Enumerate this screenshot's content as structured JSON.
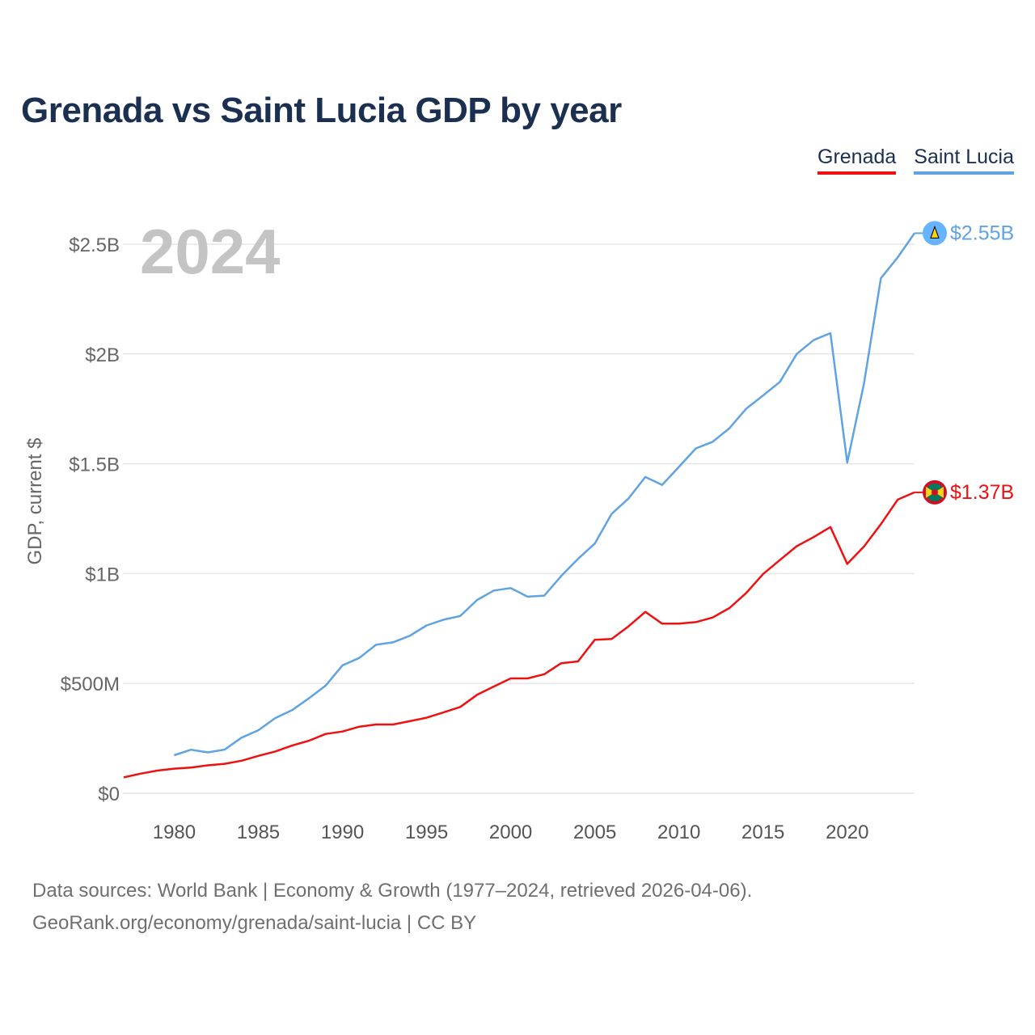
{
  "title": "Grenada vs Saint Lucia GDP by year",
  "legend": [
    {
      "name": "Grenada",
      "color": "#ee1111"
    },
    {
      "name": "Saint Lucia",
      "color": "#5fa3e3"
    }
  ],
  "footer": {
    "line1": "Data sources: World Bank | Economy & Growth (1977–2024, retrieved 2026-04-06).",
    "line2": "GeoRank.org/economy/grenada/saint-lucia | CC BY"
  },
  "chart_data": {
    "type": "line",
    "year_label": "2024",
    "ylabel": "GDP, current $",
    "ylim": [
      0,
      2.7
    ],
    "xlim": [
      1977,
      2024
    ],
    "yticks": [
      0,
      0.5,
      1,
      1.5,
      2,
      2.5
    ],
    "ytick_labels": [
      "$0",
      "$500M",
      "$1B",
      "$1.5B",
      "$2B",
      "$2.5B"
    ],
    "xticks": [
      1980,
      1985,
      1990,
      1995,
      2000,
      2005,
      2010,
      2015,
      2020
    ],
    "xtick_labels": [
      "1980",
      "1985",
      "1990",
      "1995",
      "2000",
      "2005",
      "2010",
      "2015",
      "2020"
    ],
    "series": [
      {
        "name": "Saint Lucia",
        "color": "#5fa3e3",
        "end_label": "$2.55B",
        "x": [
          1980,
          1981,
          1982,
          1983,
          1984,
          1985,
          1986,
          1987,
          1988,
          1989,
          1990,
          1991,
          1992,
          1993,
          1994,
          1995,
          1996,
          1997,
          1998,
          1999,
          2000,
          2001,
          2002,
          2003,
          2004,
          2005,
          2006,
          2007,
          2008,
          2009,
          2010,
          2011,
          2012,
          2013,
          2014,
          2015,
          2016,
          2017,
          2018,
          2019,
          2020,
          2021,
          2022,
          2023,
          2024
        ],
        "values": [
          0.173,
          0.198,
          0.186,
          0.199,
          0.253,
          0.287,
          0.342,
          0.378,
          0.432,
          0.49,
          0.582,
          0.616,
          0.676,
          0.687,
          0.717,
          0.764,
          0.79,
          0.807,
          0.88,
          0.923,
          0.934,
          0.895,
          0.9,
          0.989,
          1.067,
          1.137,
          1.272,
          1.342,
          1.44,
          1.404,
          1.486,
          1.57,
          1.6,
          1.662,
          1.751,
          1.811,
          1.873,
          2.0,
          2.063,
          2.095,
          1.505,
          1.868,
          2.345,
          2.44,
          2.55
        ]
      },
      {
        "name": "Grenada",
        "color": "#ee1111",
        "end_label": "$1.37B",
        "x": [
          1977,
          1978,
          1979,
          1980,
          1981,
          1982,
          1983,
          1984,
          1985,
          1986,
          1987,
          1988,
          1989,
          1990,
          1991,
          1992,
          1993,
          1994,
          1995,
          1996,
          1997,
          1998,
          1999,
          2000,
          2001,
          2002,
          2003,
          2004,
          2005,
          2006,
          2007,
          2008,
          2009,
          2010,
          2011,
          2012,
          2013,
          2014,
          2015,
          2016,
          2017,
          2018,
          2019,
          2020,
          2021,
          2022,
          2023,
          2024
        ],
        "values": [
          0.072,
          0.089,
          0.103,
          0.112,
          0.117,
          0.127,
          0.134,
          0.148,
          0.17,
          0.19,
          0.217,
          0.239,
          0.27,
          0.281,
          0.303,
          0.313,
          0.313,
          0.328,
          0.344,
          0.368,
          0.393,
          0.448,
          0.486,
          0.523,
          0.523,
          0.542,
          0.592,
          0.6,
          0.699,
          0.702,
          0.76,
          0.826,
          0.772,
          0.772,
          0.779,
          0.8,
          0.843,
          0.912,
          0.998,
          1.062,
          1.125,
          1.166,
          1.212,
          1.044,
          1.124,
          1.225,
          1.337,
          1.37
        ]
      }
    ]
  }
}
